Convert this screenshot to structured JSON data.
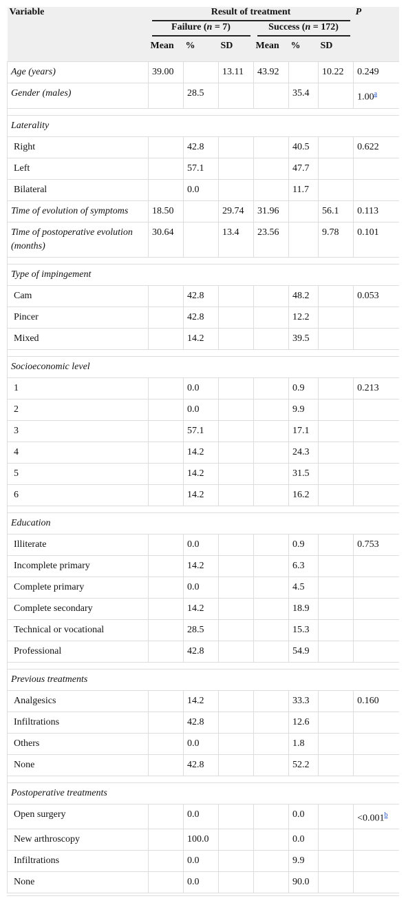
{
  "table": {
    "header": {
      "variable": "Variable",
      "result": "Result of treatment",
      "p": "P",
      "groups": [
        {
          "name": "Failure",
          "n": "n",
          "eq": " = 7)"
        },
        {
          "name": "Success",
          "n": "n",
          "eq": " = 172)"
        }
      ],
      "columns": [
        "Mean",
        "%",
        "SD",
        "Mean",
        "%",
        "SD"
      ]
    },
    "rows": [
      {
        "label": "Age (years)",
        "italic": true,
        "cells": [
          "39.00",
          null,
          "13.11",
          "43.92",
          null,
          "10.22",
          "0.249"
        ]
      },
      {
        "label": "Gender (males)",
        "italic": true,
        "cells": [
          null,
          "28.5",
          null,
          null,
          "35.4",
          null,
          {
            "text": "1.00",
            "note": "a"
          }
        ]
      },
      null,
      {
        "label": "Laterality",
        "italic": true
      },
      {
        "label": "Right",
        "cells": [
          null,
          "42.8",
          null,
          null,
          "40.5",
          null,
          "0.622"
        ]
      },
      {
        "label": "Left",
        "cells": [
          null,
          "57.1",
          null,
          null,
          "47.7",
          null,
          null
        ]
      },
      {
        "label": "Bilateral",
        "cells": [
          null,
          "0.0",
          null,
          null,
          "11.7",
          null,
          null
        ]
      },
      {
        "label": "Time of evolution of symptoms",
        "italic": true,
        "cells": [
          "18.50",
          null,
          "29.74",
          "31.96",
          null,
          "56.1",
          "0.113"
        ]
      },
      {
        "label": "Time of postoperative evolution (months)",
        "italic": true,
        "cells": [
          "30.64",
          null,
          "13.4",
          "23.56",
          null,
          "9.78",
          "0.101"
        ]
      },
      null,
      {
        "label": "Type of impingement",
        "italic": true
      },
      {
        "label": "Cam",
        "cells": [
          null,
          "42.8",
          null,
          null,
          "48.2",
          null,
          "0.053"
        ]
      },
      {
        "label": "Pincer",
        "cells": [
          null,
          "42.8",
          null,
          null,
          "12.2",
          null,
          null
        ]
      },
      {
        "label": "Mixed",
        "cells": [
          null,
          "14.2",
          null,
          null,
          "39.5",
          null,
          null
        ]
      },
      null,
      {
        "label": "Socioeconomic level",
        "italic": true
      },
      {
        "label": "1",
        "cells": [
          null,
          "0.0",
          null,
          null,
          "0.9",
          null,
          "0.213"
        ]
      },
      {
        "label": "2",
        "cells": [
          null,
          "0.0",
          null,
          null,
          "9.9",
          null,
          null
        ]
      },
      {
        "label": "3",
        "cells": [
          null,
          "57.1",
          null,
          null,
          "17.1",
          null,
          null
        ]
      },
      {
        "label": "4",
        "cells": [
          null,
          "14.2",
          null,
          null,
          "24.3",
          null,
          null
        ]
      },
      {
        "label": "5",
        "cells": [
          null,
          "14.2",
          null,
          null,
          "31.5",
          null,
          null
        ]
      },
      {
        "label": "6",
        "cells": [
          null,
          "14.2",
          null,
          null,
          "16.2",
          null,
          null
        ]
      },
      null,
      {
        "label": "Education",
        "italic": true
      },
      {
        "label": "Illiterate",
        "cells": [
          null,
          "0.0",
          null,
          null,
          "0.9",
          null,
          "0.753"
        ]
      },
      {
        "label": "Incomplete primary",
        "cells": [
          null,
          "14.2",
          null,
          null,
          "6.3",
          null,
          null
        ]
      },
      {
        "label": "Complete primary",
        "cells": [
          null,
          "0.0",
          null,
          null,
          "4.5",
          null,
          null
        ]
      },
      {
        "label": "Complete secondary",
        "cells": [
          null,
          "14.2",
          null,
          null,
          "18.9",
          null,
          null
        ]
      },
      {
        "label": "Technical or vocational",
        "cells": [
          null,
          "28.5",
          null,
          null,
          "15.3",
          null,
          null
        ]
      },
      {
        "label": "Professional",
        "cells": [
          null,
          "42.8",
          null,
          null,
          "54.9",
          null,
          null
        ]
      },
      null,
      {
        "label": "Previous treatments",
        "italic": true
      },
      {
        "label": "Analgesics",
        "cells": [
          null,
          "14.2",
          null,
          null,
          "33.3",
          null,
          "0.160"
        ]
      },
      {
        "label": "Infiltrations",
        "cells": [
          null,
          "42.8",
          null,
          null,
          "12.6",
          null,
          null
        ]
      },
      {
        "label": "Others",
        "cells": [
          null,
          "0.0",
          null,
          null,
          "1.8",
          null,
          null
        ]
      },
      {
        "label": "None",
        "cells": [
          null,
          "42.8",
          null,
          null,
          "52.2",
          null,
          null
        ]
      },
      null,
      {
        "label": "Postoperative treatments",
        "italic": true
      },
      {
        "label": "Open surgery",
        "cells": [
          null,
          "0.0",
          null,
          null,
          "0.0",
          null,
          {
            "text": "<0.001",
            "note": "b"
          }
        ]
      },
      {
        "label": "New arthroscopy",
        "cells": [
          null,
          "100.0",
          null,
          null,
          "0.0",
          null,
          null
        ]
      },
      {
        "label": "Infiltrations",
        "cells": [
          null,
          "0.0",
          null,
          null,
          "9.9",
          null,
          null
        ]
      },
      {
        "label": "None",
        "cells": [
          null,
          "0.0",
          null,
          null,
          "90.0",
          null,
          null
        ]
      }
    ]
  }
}
